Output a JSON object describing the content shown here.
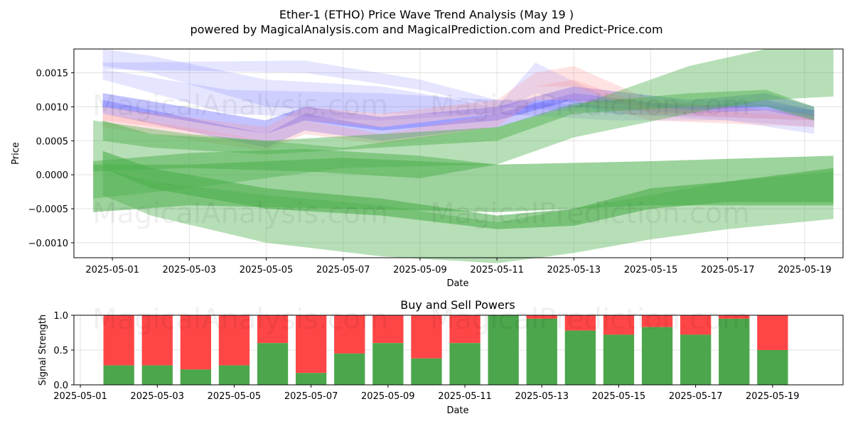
{
  "title_line1": "Ether-1 (ETHO) Price Wave Trend Analysis (May 19 )",
  "title_line2": "powered by MagicalAnalysis.com and MagicalPrediction.com and Predict-Price.com",
  "watermarks": [
    "MagicalAnalysis.com",
    "MagicalPrediction.com"
  ],
  "colors": {
    "buy": "#4ca64c",
    "sell": "#ff4646",
    "blue": "#5050ff",
    "pink": "#ff9090",
    "green": "#4caf4c"
  },
  "chart_data": [
    {
      "type": "area",
      "title": "",
      "xlabel": "Date",
      "ylabel": "Price",
      "x_ticks": [
        "2025-05-01",
        "2025-05-03",
        "2025-05-05",
        "2025-05-07",
        "2025-05-09",
        "2025-05-11",
        "2025-05-13",
        "2025-05-15",
        "2025-05-17",
        "2025-05-19"
      ],
      "y_ticks": [
        "0.0015",
        "0.0010",
        "0.0005",
        "0.0000",
        "−0.0005",
        "−0.0010"
      ],
      "xlim": [
        "2025-04-30",
        "2025-05-20"
      ],
      "ylim": [
        -0.00122,
        0.00185
      ],
      "grid": true,
      "series": [
        {
          "color": "blue",
          "opacity": 0.15,
          "x": [
            "2025-04-30T18:00",
            "2025-05-04",
            "2025-05-08",
            "2025-05-11",
            "2025-05-14",
            "2025-05-17",
            "2025-05-19T06:00"
          ],
          "upper": [
            0.00155,
            0.00125,
            0.0012,
            0.0011,
            0.001,
            0.0011,
            0.00095
          ],
          "lower": [
            0.0014,
            0.0009,
            0.0008,
            0.0009,
            0.0008,
            0.0008,
            0.0006
          ]
        },
        {
          "color": "blue",
          "opacity": 0.15,
          "x": [
            "2025-04-30T18:00",
            "2025-05-02",
            "2025-05-05",
            "2025-05-08",
            "2025-05-11",
            "2025-05-12",
            "2025-05-14",
            "2025-05-17",
            "2025-05-19T06:00"
          ],
          "upper": [
            0.00185,
            0.00175,
            0.0014,
            0.0013,
            0.001,
            0.00165,
            0.0011,
            0.001,
            0.0009
          ],
          "lower": [
            0.0016,
            0.0015,
            0.001,
            0.0009,
            0.0009,
            0.0012,
            0.0009,
            0.0008,
            0.0007
          ]
        },
        {
          "color": "blue",
          "opacity": 0.15,
          "x": [
            "2025-04-30T18:00",
            "2025-05-06",
            "2025-05-09",
            "2025-05-11",
            "2025-05-14",
            "2025-05-19T06:00"
          ],
          "upper": [
            0.00165,
            0.00168,
            0.0014,
            0.0011,
            0.0011,
            0.00095
          ],
          "lower": [
            0.00155,
            0.0015,
            0.00125,
            0.001,
            0.0009,
            0.0008
          ]
        },
        {
          "color": "blue",
          "opacity": 0.35,
          "x": [
            "2025-04-30T18:00",
            "2025-05-05",
            "2025-05-06",
            "2025-05-08",
            "2025-05-11",
            "2025-05-13",
            "2025-05-16",
            "2025-05-18",
            "2025-05-19T06:00"
          ],
          "upper": [
            0.0012,
            0.0008,
            0.001,
            0.00085,
            0.001,
            0.0013,
            0.0011,
            0.0012,
            0.001
          ],
          "lower": [
            0.001,
            0.0006,
            0.0008,
            0.00065,
            0.0008,
            0.0011,
            0.00095,
            0.001,
            0.00085
          ]
        },
        {
          "color": "blue",
          "opacity": 0.3,
          "x": [
            "2025-04-30T18:00",
            "2025-05-05",
            "2025-05-06",
            "2025-05-08",
            "2025-05-11",
            "2025-05-13",
            "2025-05-16",
            "2025-05-18",
            "2025-05-19T06:00"
          ],
          "upper": [
            0.0011,
            0.0006,
            0.0009,
            0.0007,
            0.0009,
            0.0012,
            0.001,
            0.0011,
            0.00095
          ],
          "lower": [
            0.0009,
            0.0004,
            0.00065,
            0.0005,
            0.0007,
            0.001,
            0.0009,
            0.00095,
            0.0008
          ]
        },
        {
          "color": "pink",
          "opacity": 0.25,
          "x": [
            "2025-04-30T18:00",
            "2025-05-05",
            "2025-05-06",
            "2025-05-08",
            "2025-05-11",
            "2025-05-12",
            "2025-05-13",
            "2025-05-15",
            "2025-05-19T06:00"
          ],
          "upper": [
            0.001,
            0.0007,
            0.001,
            0.0009,
            0.0011,
            0.0015,
            0.0016,
            0.0011,
            0.0009
          ],
          "lower": [
            0.0008,
            0.0005,
            0.0008,
            0.0007,
            0.0009,
            0.0013,
            0.0013,
            0.0009,
            0.0008
          ]
        },
        {
          "color": "pink",
          "opacity": 0.25,
          "x": [
            "2025-04-30T18:00",
            "2025-05-05",
            "2025-05-06",
            "2025-05-08",
            "2025-05-11",
            "2025-05-12",
            "2025-05-13",
            "2025-05-15",
            "2025-05-19T06:00"
          ],
          "upper": [
            0.0009,
            0.0005,
            0.0008,
            0.0006,
            0.0009,
            0.0013,
            0.0014,
            0.001,
            0.00085
          ],
          "lower": [
            0.0007,
            0.00035,
            0.0006,
            0.00045,
            0.0007,
            0.0011,
            0.0011,
            0.0008,
            0.0007
          ]
        },
        {
          "color": "green",
          "opacity": 0.45,
          "x": [
            "2025-04-30T18:00",
            "2025-05-02",
            "2025-05-05",
            "2025-05-08",
            "2025-05-11",
            "2025-05-13",
            "2025-05-16",
            "2025-05-18",
            "2025-05-19T06:00"
          ],
          "upper": [
            0.0008,
            0.0006,
            0.0005,
            0.0006,
            0.0007,
            0.00105,
            0.0012,
            0.00125,
            0.001
          ],
          "lower": [
            0.0005,
            0.0004,
            0.0003,
            0.0004,
            0.0005,
            0.0009,
            0.001,
            0.001,
            0.0008
          ]
        },
        {
          "color": "green",
          "opacity": 0.4,
          "x": [
            "2025-04-30T12:00",
            "2025-05-03",
            "2025-05-07",
            "2025-05-11",
            "2025-05-13",
            "2025-05-16",
            "2025-05-18",
            "2025-05-19T18:00"
          ],
          "upper": [
            0.0008,
            0.0006,
            0.0004,
            0.0007,
            0.001,
            0.0016,
            0.00185,
            0.00185
          ],
          "lower": [
            -0.00035,
            -0.0002,
            0.0001,
            0.00015,
            0.00055,
            0.0009,
            0.0011,
            0.00115
          ]
        },
        {
          "color": "green",
          "opacity": 0.55,
          "x": [
            "2025-04-30T12:00",
            "2025-05-03",
            "2025-05-07",
            "2025-05-11",
            "2025-05-15",
            "2025-05-19T18:00"
          ],
          "upper": [
            0.00015,
            0.00015,
            0.00025,
            0.00015,
            0.0002,
            0.00028
          ],
          "lower": [
            -0.00055,
            -0.00045,
            -0.0005,
            -0.00055,
            -0.00045,
            -0.00045
          ]
        },
        {
          "color": "green",
          "opacity": 0.6,
          "x": [
            "2025-04-30T18:00",
            "2025-05-02",
            "2025-05-05",
            "2025-05-08",
            "2025-05-11",
            "2025-05-13",
            "2025-05-15",
            "2025-05-17",
            "2025-05-19T18:00"
          ],
          "upper": [
            0.00035,
            0.0001,
            -0.0002,
            -0.00035,
            -0.0006,
            -0.0005,
            -0.0002,
            -0.0001,
            0.0001
          ],
          "lower": [
            0.0001,
            -0.0002,
            -0.0005,
            -0.0006,
            -0.0008,
            -0.00075,
            -0.0005,
            -0.0004,
            -0.0004
          ]
        },
        {
          "color": "green",
          "opacity": 0.4,
          "x": [
            "2025-04-30T18:00",
            "2025-05-02",
            "2025-05-05",
            "2025-05-08",
            "2025-05-11",
            "2025-05-13",
            "2025-05-15",
            "2025-05-17",
            "2025-05-19T18:00"
          ],
          "upper": [
            0.0001,
            -0.0001,
            -0.0003,
            -0.00045,
            -0.0007,
            -0.0005,
            -0.0003,
            -0.0001,
            5e-05
          ],
          "lower": [
            -0.0003,
            -0.0006,
            -0.001,
            -0.0012,
            -0.0013,
            -0.00115,
            -0.00095,
            -0.0008,
            -0.00065
          ]
        },
        {
          "color": "green",
          "opacity": 0.5,
          "x": [
            "2025-04-30T12:00",
            "2025-05-03",
            "2025-05-06",
            "2025-05-09",
            "2025-05-11"
          ],
          "upper": [
            0.0002,
            0.00032,
            0.00038,
            0.00028,
            0.00015
          ],
          "lower": [
            5e-05,
            0.0001,
            5e-05,
            -5e-05,
            0.00015
          ]
        }
      ]
    },
    {
      "type": "bar",
      "title": "Buy and Sell Powers",
      "xlabel": "Date",
      "ylabel": "Signal Strength",
      "x_ticks": [
        "2025-05-01",
        "2025-05-03",
        "2025-05-05",
        "2025-05-07",
        "2025-05-09",
        "2025-05-11",
        "2025-05-13",
        "2025-05-15",
        "2025-05-17",
        "2025-05-19"
      ],
      "y_ticks": [
        "0.0",
        "0.5",
        "1.0"
      ],
      "ylim": [
        0,
        1
      ],
      "xlim": [
        "2025-04-30T20:00",
        "2025-05-20T20:00"
      ],
      "categories": [
        "2025-05-02",
        "2025-05-03",
        "2025-05-04",
        "2025-05-05",
        "2025-05-06",
        "2025-05-07",
        "2025-05-08",
        "2025-05-09",
        "2025-05-10",
        "2025-05-11",
        "2025-05-12",
        "2025-05-13",
        "2025-05-14",
        "2025-05-15",
        "2025-05-16",
        "2025-05-17",
        "2025-05-18",
        "2025-05-19"
      ],
      "buy": [
        0.28,
        0.28,
        0.22,
        0.28,
        0.6,
        0.17,
        0.45,
        0.6,
        0.38,
        0.6,
        1.0,
        0.95,
        0.78,
        0.72,
        0.83,
        0.72,
        0.95,
        0.5
      ]
    }
  ]
}
